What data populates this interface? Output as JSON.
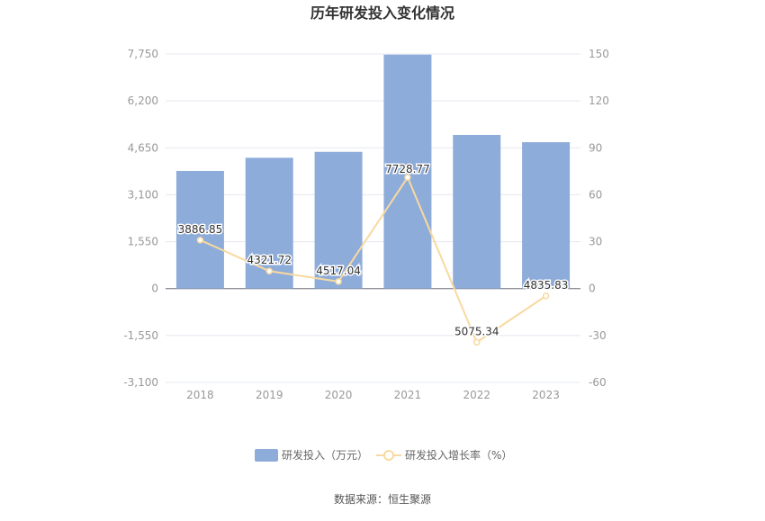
{
  "chart_data": {
    "type": "bar+line",
    "title": "历年研发投入变化情况",
    "categories": [
      "2018",
      "2019",
      "2020",
      "2021",
      "2022",
      "2023"
    ],
    "series": [
      {
        "name": "研发投入（万元）",
        "type": "bar",
        "axis": "left",
        "values": [
          3886.85,
          4321.72,
          4517.04,
          7728.77,
          5075.34,
          4835.83
        ],
        "labels": [
          "3886.85",
          "4321.72",
          "4517.04",
          "7728.77",
          "5075.34",
          "4835.83"
        ]
      },
      {
        "name": "研发投入增长率（%）",
        "type": "line",
        "axis": "right",
        "values": [
          31,
          11.2,
          4.5,
          71.1,
          -34.3,
          -4.7
        ]
      }
    ],
    "left_axis": {
      "ylim": [
        -3100,
        7750
      ],
      "ticks": [
        "7,750",
        "6,200",
        "4,650",
        "3,100",
        "1,550",
        "0",
        "-1,550",
        "-3,100"
      ]
    },
    "right_axis": {
      "ylim": [
        -60,
        150
      ],
      "ticks": [
        "150",
        "120",
        "90",
        "60",
        "30",
        "0",
        "-30",
        "-60"
      ]
    },
    "grid": true,
    "legend_position": "bottom",
    "colors": {
      "bar": "#8eacda",
      "line": "#f8d9a0",
      "grid": "#e5e8ef",
      "axis_text": "#999999",
      "label_text": "#333333"
    }
  },
  "source": "数据来源：恒生聚源"
}
